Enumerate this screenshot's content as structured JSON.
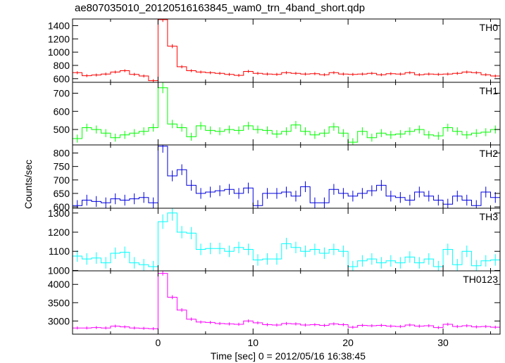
{
  "title": "ae807035010_20120516163845_wam0_trn_4band_short.qdp",
  "ylabel": "Counts/sec",
  "xlabel": "Time [sec] 0 = 2012/05/16 16:38:45",
  "chart_data": [
    {
      "type": "line",
      "name": "TH0",
      "label": "TH0",
      "color": "#ff0000",
      "ylim": [
        545,
        1500
      ],
      "yticks": [
        600,
        800,
        1000,
        1200,
        1400
      ],
      "xlim": [
        -9,
        36
      ],
      "x": [
        -8.5,
        -7.5,
        -6.5,
        -5.5,
        -4.5,
        -3.5,
        -2.5,
        -1.5,
        -0.5,
        0.5,
        1.5,
        2.5,
        3.5,
        4.5,
        5.5,
        6.5,
        7.5,
        8.5,
        9.5,
        10.5,
        11.5,
        12.5,
        13.5,
        14.5,
        15.5,
        16.5,
        17.5,
        18.5,
        19.5,
        20.5,
        21.5,
        22.5,
        23.5,
        24.5,
        25.5,
        26.5,
        27.5,
        28.5,
        29.5,
        30.5,
        31.5,
        32.5,
        33.5,
        34.5,
        35.5
      ],
      "y": [
        690,
        645,
        655,
        670,
        700,
        720,
        665,
        640,
        570,
        1490,
        1090,
        780,
        720,
        700,
        690,
        680,
        665,
        650,
        710,
        680,
        670,
        665,
        690,
        680,
        670,
        675,
        660,
        690,
        670,
        665,
        670,
        680,
        660,
        675,
        670,
        690,
        660,
        670,
        665,
        670,
        680,
        700,
        690,
        660,
        640
      ],
      "err": [
        22,
        22,
        22,
        22,
        22,
        22,
        22,
        22,
        22,
        35,
        30,
        24,
        22,
        22,
        22,
        22,
        22,
        22,
        22,
        22,
        22,
        22,
        22,
        22,
        22,
        22,
        22,
        22,
        22,
        22,
        22,
        22,
        22,
        22,
        22,
        22,
        22,
        22,
        22,
        22,
        22,
        22,
        22,
        22,
        22
      ]
    },
    {
      "type": "line",
      "name": "TH1",
      "label": "TH1",
      "color": "#00ff00",
      "ylim": [
        415,
        760
      ],
      "yticks": [
        500,
        600,
        700
      ],
      "xlim": [
        -9,
        36
      ],
      "x": [
        -8.5,
        -7.5,
        -6.5,
        -5.5,
        -4.5,
        -3.5,
        -2.5,
        -1.5,
        -0.5,
        0.5,
        1.5,
        2.5,
        3.5,
        4.5,
        5.5,
        6.5,
        7.5,
        8.5,
        9.5,
        10.5,
        11.5,
        12.5,
        13.5,
        14.5,
        15.5,
        16.5,
        17.5,
        18.5,
        19.5,
        20.5,
        21.5,
        22.5,
        23.5,
        24.5,
        25.5,
        26.5,
        27.5,
        28.5,
        29.5,
        30.5,
        31.5,
        32.5,
        33.5,
        34.5,
        35.5
      ],
      "y": [
        450,
        510,
        500,
        480,
        455,
        470,
        480,
        490,
        510,
        730,
        530,
        510,
        460,
        520,
        495,
        490,
        500,
        495,
        520,
        500,
        495,
        475,
        490,
        525,
        490,
        470,
        480,
        515,
        480,
        430,
        490,
        455,
        480,
        470,
        475,
        490,
        500,
        470,
        465,
        510,
        490,
        470,
        480,
        485,
        500
      ],
      "err": [
        22,
        22,
        22,
        22,
        22,
        22,
        22,
        22,
        22,
        30,
        23,
        22,
        22,
        22,
        22,
        22,
        22,
        22,
        22,
        22,
        22,
        22,
        22,
        22,
        22,
        22,
        22,
        22,
        22,
        22,
        22,
        22,
        22,
        22,
        22,
        22,
        22,
        22,
        22,
        22,
        22,
        22,
        22,
        22,
        22
      ]
    },
    {
      "type": "line",
      "name": "TH2",
      "label": "TH2",
      "color": "#0000dd",
      "ylim": [
        595,
        830
      ],
      "yticks": [
        600,
        650,
        700,
        750,
        800
      ],
      "xlim": [
        -9,
        36
      ],
      "x": [
        -8.5,
        -7.5,
        -6.5,
        -5.5,
        -4.5,
        -3.5,
        -2.5,
        -1.5,
        -0.5,
        0.5,
        1.5,
        2.5,
        3.5,
        4.5,
        5.5,
        6.5,
        7.5,
        8.5,
        9.5,
        10.5,
        11.5,
        12.5,
        13.5,
        14.5,
        15.5,
        16.5,
        17.5,
        18.5,
        19.5,
        20.5,
        21.5,
        22.5,
        23.5,
        24.5,
        25.5,
        26.5,
        27.5,
        28.5,
        29.5,
        30.5,
        31.5,
        32.5,
        33.5,
        34.5,
        35.5
      ],
      "y": [
        605,
        625,
        620,
        615,
        630,
        625,
        630,
        635,
        615,
        825,
        715,
        738,
        680,
        650,
        655,
        660,
        665,
        650,
        670,
        605,
        650,
        650,
        655,
        640,
        675,
        615,
        615,
        665,
        650,
        640,
        650,
        660,
        680,
        640,
        635,
        625,
        655,
        640,
        625,
        610,
        640,
        625,
        605,
        655,
        635
      ],
      "err": [
        20,
        20,
        20,
        20,
        20,
        20,
        20,
        20,
        20,
        24,
        20,
        20,
        20,
        20,
        20,
        20,
        20,
        20,
        20,
        20,
        20,
        20,
        20,
        20,
        20,
        20,
        20,
        20,
        20,
        20,
        20,
        20,
        20,
        20,
        20,
        20,
        20,
        20,
        20,
        20,
        20,
        20,
        20,
        20,
        20
      ]
    },
    {
      "type": "line",
      "name": "TH3",
      "label": "TH3",
      "color": "#00ffff",
      "ylim": [
        998,
        1325
      ],
      "yticks": [
        1000,
        1100,
        1200,
        1300
      ],
      "xlim": [
        -9,
        36
      ],
      "x": [
        -8.5,
        -7.5,
        -6.5,
        -5.5,
        -4.5,
        -3.5,
        -2.5,
        -1.5,
        -0.5,
        0.5,
        1.5,
        2.5,
        3.5,
        4.5,
        5.5,
        6.5,
        7.5,
        8.5,
        9.5,
        10.5,
        11.5,
        12.5,
        13.5,
        14.5,
        15.5,
        16.5,
        17.5,
        18.5,
        19.5,
        20.5,
        21.5,
        22.5,
        23.5,
        24.5,
        25.5,
        26.5,
        27.5,
        28.5,
        29.5,
        30.5,
        31.5,
        32.5,
        33.5,
        34.5,
        35.5
      ],
      "y": [
        1075,
        1060,
        1065,
        1040,
        1090,
        1095,
        1040,
        1030,
        1020,
        1255,
        1300,
        1200,
        1195,
        1110,
        1115,
        1115,
        1100,
        1120,
        1110,
        1055,
        1060,
        1060,
        1140,
        1120,
        1100,
        1110,
        1090,
        1110,
        1100,
        1020,
        1050,
        1060,
        1040,
        1050,
        1040,
        1070,
        1040,
        1060,
        1020,
        1110,
        1030,
        1100,
        1025,
        1050,
        1055
      ],
      "err": [
        30,
        30,
        30,
        30,
        30,
        30,
        30,
        30,
        30,
        38,
        40,
        32,
        32,
        30,
        30,
        30,
        30,
        30,
        30,
        30,
        30,
        30,
        30,
        30,
        30,
        30,
        30,
        30,
        30,
        30,
        30,
        30,
        30,
        30,
        30,
        30,
        30,
        30,
        30,
        30,
        30,
        30,
        30,
        30,
        30
      ]
    },
    {
      "type": "line",
      "name": "TH0123",
      "label": "TH0123",
      "color": "#ff00ff",
      "ylim": [
        2640,
        4370
      ],
      "yticks": [
        3000,
        3500,
        4000
      ],
      "xlim": [
        -9,
        36
      ],
      "xticks": [
        0,
        10,
        20,
        30
      ],
      "x": [
        -8.5,
        -7.5,
        -6.5,
        -5.5,
        -4.5,
        -3.5,
        -2.5,
        -1.5,
        -0.5,
        0.5,
        1.5,
        2.5,
        3.5,
        4.5,
        5.5,
        6.5,
        7.5,
        8.5,
        9.5,
        10.5,
        11.5,
        12.5,
        13.5,
        14.5,
        15.5,
        16.5,
        17.5,
        18.5,
        19.5,
        20.5,
        21.5,
        22.5,
        23.5,
        24.5,
        25.5,
        26.5,
        27.5,
        28.5,
        29.5,
        30.5,
        31.5,
        32.5,
        33.5,
        34.5,
        35.5
      ],
      "y": [
        2810,
        2810,
        2820,
        2810,
        2860,
        2840,
        2810,
        2800,
        2790,
        4300,
        3650,
        3300,
        3050,
        2970,
        2960,
        2930,
        2920,
        2910,
        3000,
        2950,
        2900,
        2890,
        2930,
        2920,
        2890,
        2900,
        2880,
        2920,
        2900,
        2830,
        2880,
        2870,
        2880,
        2860,
        2850,
        2890,
        2860,
        2870,
        2820,
        2910,
        2850,
        2870,
        2840,
        2850,
        2830
      ],
      "err": [
        40,
        40,
        40,
        40,
        40,
        40,
        40,
        40,
        40,
        60,
        55,
        50,
        45,
        42,
        42,
        42,
        42,
        42,
        42,
        42,
        42,
        42,
        42,
        42,
        42,
        42,
        42,
        42,
        42,
        42,
        42,
        42,
        42,
        42,
        42,
        42,
        42,
        42,
        42,
        42,
        42,
        42,
        42,
        42,
        42
      ]
    }
  ]
}
